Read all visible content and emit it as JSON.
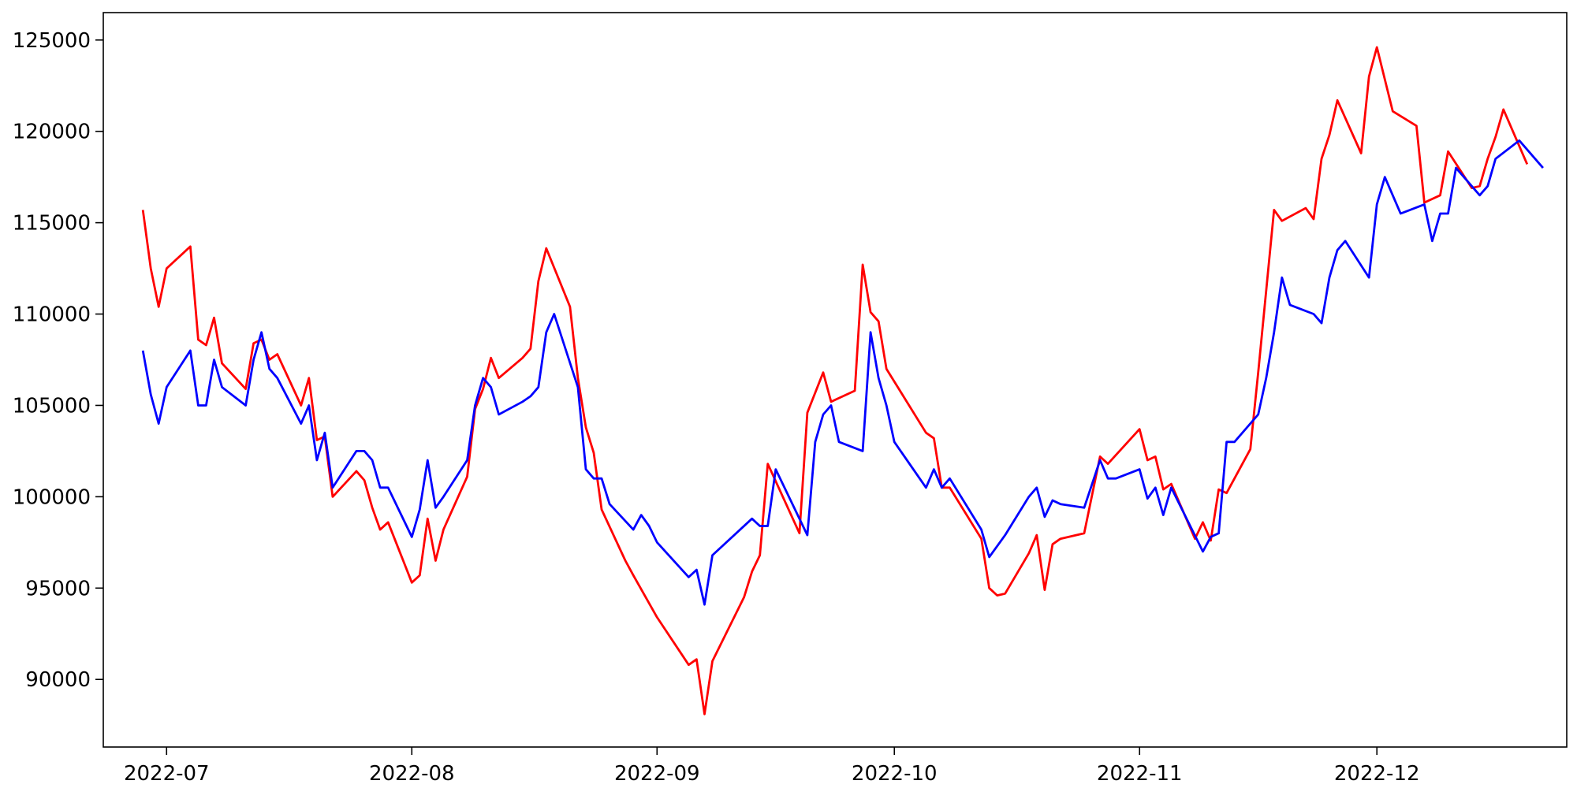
{
  "chart_data": {
    "type": "line",
    "title": "",
    "xlabel": "",
    "ylabel": "",
    "grid": false,
    "legend": "none",
    "xlim": [
      "2022-06-23",
      "2022-12-25"
    ],
    "ylim": [
      86300,
      126500
    ],
    "x_ticks": [
      {
        "date": "2022-07-01",
        "label": "2022-07"
      },
      {
        "date": "2022-08-01",
        "label": "2022-08"
      },
      {
        "date": "2022-09-01",
        "label": "2022-09"
      },
      {
        "date": "2022-10-01",
        "label": "2022-10"
      },
      {
        "date": "2022-11-01",
        "label": "2022-11"
      },
      {
        "date": "2022-12-01",
        "label": "2022-12"
      }
    ],
    "y_ticks": [
      90000,
      95000,
      100000,
      105000,
      110000,
      115000,
      120000,
      125000
    ],
    "series": [
      {
        "color": "#ff0000",
        "points": [
          [
            "2022-06-28",
            115700
          ],
          [
            "2022-06-29",
            112500
          ],
          [
            "2022-06-30",
            110400
          ],
          [
            "2022-07-01",
            112500
          ],
          [
            "2022-07-04",
            113700
          ],
          [
            "2022-07-05",
            108600
          ],
          [
            "2022-07-06",
            108300
          ],
          [
            "2022-07-07",
            109800
          ],
          [
            "2022-07-08",
            107300
          ],
          [
            "2022-07-11",
            105900
          ],
          [
            "2022-07-12",
            108400
          ],
          [
            "2022-07-13",
            108600
          ],
          [
            "2022-07-14",
            107500
          ],
          [
            "2022-07-15",
            107800
          ],
          [
            "2022-07-18",
            105000
          ],
          [
            "2022-07-19",
            106500
          ],
          [
            "2022-07-20",
            103100
          ],
          [
            "2022-07-21",
            103300
          ],
          [
            "2022-07-22",
            100000
          ],
          [
            "2022-07-25",
            101400
          ],
          [
            "2022-07-26",
            100900
          ],
          [
            "2022-07-27",
            99400
          ],
          [
            "2022-07-28",
            98200
          ],
          [
            "2022-07-29",
            98600
          ],
          [
            "2022-08-01",
            95300
          ],
          [
            "2022-08-02",
            95700
          ],
          [
            "2022-08-03",
            98800
          ],
          [
            "2022-08-04",
            96500
          ],
          [
            "2022-08-05",
            98200
          ],
          [
            "2022-08-08",
            101100
          ],
          [
            "2022-08-09",
            104800
          ],
          [
            "2022-08-10",
            105900
          ],
          [
            "2022-08-11",
            107600
          ],
          [
            "2022-08-12",
            106500
          ],
          [
            "2022-08-15",
            107600
          ],
          [
            "2022-08-16",
            108100
          ],
          [
            "2022-08-17",
            111800
          ],
          [
            "2022-08-18",
            113600
          ],
          [
            "2022-08-21",
            110400
          ],
          [
            "2022-08-22",
            106500
          ],
          [
            "2022-08-23",
            103800
          ],
          [
            "2022-08-24",
            102400
          ],
          [
            "2022-08-25",
            99300
          ],
          [
            "2022-08-28",
            96500
          ],
          [
            "2022-08-29",
            95700
          ],
          [
            "2022-09-01",
            93400
          ],
          [
            "2022-09-05",
            90800
          ],
          [
            "2022-09-06",
            91100
          ],
          [
            "2022-09-07",
            88100
          ],
          [
            "2022-09-08",
            91000
          ],
          [
            "2022-09-12",
            94500
          ],
          [
            "2022-09-13",
            95900
          ],
          [
            "2022-09-14",
            96800
          ],
          [
            "2022-09-15",
            101800
          ],
          [
            "2022-09-19",
            98000
          ],
          [
            "2022-09-20",
            104600
          ],
          [
            "2022-09-22",
            106800
          ],
          [
            "2022-09-23",
            105200
          ],
          [
            "2022-09-26",
            105800
          ],
          [
            "2022-09-27",
            112700
          ],
          [
            "2022-09-28",
            110100
          ],
          [
            "2022-09-29",
            109600
          ],
          [
            "2022-09-30",
            107000
          ],
          [
            "2022-10-05",
            103500
          ],
          [
            "2022-10-06",
            103200
          ],
          [
            "2022-10-07",
            100500
          ],
          [
            "2022-10-08",
            100500
          ],
          [
            "2022-10-12",
            97700
          ],
          [
            "2022-10-13",
            95000
          ],
          [
            "2022-10-14",
            94600
          ],
          [
            "2022-10-15",
            94700
          ],
          [
            "2022-10-18",
            96900
          ],
          [
            "2022-10-19",
            97900
          ],
          [
            "2022-10-20",
            94900
          ],
          [
            "2022-10-21",
            97400
          ],
          [
            "2022-10-22",
            97700
          ],
          [
            "2022-10-25",
            98000
          ],
          [
            "2022-10-27",
            102200
          ],
          [
            "2022-10-28",
            101800
          ],
          [
            "2022-11-01",
            103700
          ],
          [
            "2022-11-02",
            102000
          ],
          [
            "2022-11-03",
            102200
          ],
          [
            "2022-11-04",
            100400
          ],
          [
            "2022-11-05",
            100700
          ],
          [
            "2022-11-08",
            97700
          ],
          [
            "2022-11-09",
            98600
          ],
          [
            "2022-11-10",
            97600
          ],
          [
            "2022-11-11",
            100400
          ],
          [
            "2022-11-12",
            100200
          ],
          [
            "2022-11-15",
            102600
          ],
          [
            "2022-11-16",
            106800
          ],
          [
            "2022-11-18",
            115700
          ],
          [
            "2022-11-19",
            115100
          ],
          [
            "2022-11-22",
            115800
          ],
          [
            "2022-11-23",
            115200
          ],
          [
            "2022-11-24",
            118500
          ],
          [
            "2022-11-25",
            119800
          ],
          [
            "2022-11-26",
            121700
          ],
          [
            "2022-11-29",
            118800
          ],
          [
            "2022-11-30",
            123000
          ],
          [
            "2022-12-01",
            124600
          ],
          [
            "2022-12-03",
            121100
          ],
          [
            "2022-12-06",
            120300
          ],
          [
            "2022-12-07",
            116100
          ],
          [
            "2022-12-09",
            116500
          ],
          [
            "2022-12-10",
            118900
          ],
          [
            "2022-12-13",
            116900
          ],
          [
            "2022-12-14",
            117000
          ],
          [
            "2022-12-15",
            118500
          ],
          [
            "2022-12-16",
            119700
          ],
          [
            "2022-12-17",
            121200
          ],
          [
            "2022-12-20",
            118200
          ]
        ]
      },
      {
        "color": "#0000ff",
        "points": [
          [
            "2022-06-28",
            108000
          ],
          [
            "2022-06-29",
            105600
          ],
          [
            "2022-06-30",
            104000
          ],
          [
            "2022-07-01",
            106000
          ],
          [
            "2022-07-04",
            108000
          ],
          [
            "2022-07-05",
            105000
          ],
          [
            "2022-07-06",
            105000
          ],
          [
            "2022-07-07",
            107500
          ],
          [
            "2022-07-08",
            106000
          ],
          [
            "2022-07-11",
            105000
          ],
          [
            "2022-07-12",
            107500
          ],
          [
            "2022-07-13",
            109000
          ],
          [
            "2022-07-14",
            107000
          ],
          [
            "2022-07-15",
            106500
          ],
          [
            "2022-07-18",
            104000
          ],
          [
            "2022-07-19",
            105000
          ],
          [
            "2022-07-20",
            102000
          ],
          [
            "2022-07-21",
            103500
          ],
          [
            "2022-07-22",
            100500
          ],
          [
            "2022-07-25",
            102500
          ],
          [
            "2022-07-26",
            102500
          ],
          [
            "2022-07-27",
            102000
          ],
          [
            "2022-07-28",
            100500
          ],
          [
            "2022-07-29",
            100500
          ],
          [
            "2022-08-01",
            97800
          ],
          [
            "2022-08-02",
            99300
          ],
          [
            "2022-08-03",
            102000
          ],
          [
            "2022-08-04",
            99400
          ],
          [
            "2022-08-05",
            100000
          ],
          [
            "2022-08-08",
            102000
          ],
          [
            "2022-08-09",
            105000
          ],
          [
            "2022-08-10",
            106500
          ],
          [
            "2022-08-11",
            106000
          ],
          [
            "2022-08-12",
            104500
          ],
          [
            "2022-08-15",
            105200
          ],
          [
            "2022-08-16",
            105500
          ],
          [
            "2022-08-17",
            106000
          ],
          [
            "2022-08-18",
            109000
          ],
          [
            "2022-08-19",
            110000
          ],
          [
            "2022-08-22",
            106000
          ],
          [
            "2022-08-23",
            101500
          ],
          [
            "2022-08-24",
            101000
          ],
          [
            "2022-08-25",
            101000
          ],
          [
            "2022-08-26",
            99600
          ],
          [
            "2022-08-29",
            98200
          ],
          [
            "2022-08-30",
            99000
          ],
          [
            "2022-08-31",
            98400
          ],
          [
            "2022-09-01",
            97500
          ],
          [
            "2022-09-05",
            95600
          ],
          [
            "2022-09-06",
            96000
          ],
          [
            "2022-09-07",
            94100
          ],
          [
            "2022-09-08",
            96800
          ],
          [
            "2022-09-13",
            98800
          ],
          [
            "2022-09-14",
            98400
          ],
          [
            "2022-09-15",
            98400
          ],
          [
            "2022-09-16",
            101500
          ],
          [
            "2022-09-20",
            97900
          ],
          [
            "2022-09-21",
            103000
          ],
          [
            "2022-09-22",
            104500
          ],
          [
            "2022-09-23",
            105000
          ],
          [
            "2022-09-24",
            103000
          ],
          [
            "2022-09-27",
            102500
          ],
          [
            "2022-09-28",
            109000
          ],
          [
            "2022-09-29",
            106500
          ],
          [
            "2022-09-30",
            105000
          ],
          [
            "2022-10-01",
            103000
          ],
          [
            "2022-10-05",
            100500
          ],
          [
            "2022-10-06",
            101500
          ],
          [
            "2022-10-07",
            100500
          ],
          [
            "2022-10-08",
            101000
          ],
          [
            "2022-10-12",
            98200
          ],
          [
            "2022-10-13",
            96700
          ],
          [
            "2022-10-15",
            97900
          ],
          [
            "2022-10-18",
            100000
          ],
          [
            "2022-10-19",
            100500
          ],
          [
            "2022-10-20",
            98900
          ],
          [
            "2022-10-21",
            99800
          ],
          [
            "2022-10-22",
            99600
          ],
          [
            "2022-10-25",
            99400
          ],
          [
            "2022-10-27",
            102000
          ],
          [
            "2022-10-28",
            101000
          ],
          [
            "2022-10-29",
            101000
          ],
          [
            "2022-11-01",
            101500
          ],
          [
            "2022-11-02",
            99900
          ],
          [
            "2022-11-03",
            100500
          ],
          [
            "2022-11-04",
            99000
          ],
          [
            "2022-11-05",
            100500
          ],
          [
            "2022-11-09",
            97000
          ],
          [
            "2022-11-10",
            97800
          ],
          [
            "2022-11-11",
            98000
          ],
          [
            "2022-11-12",
            103000
          ],
          [
            "2022-11-13",
            103000
          ],
          [
            "2022-11-16",
            104500
          ],
          [
            "2022-11-17",
            106500
          ],
          [
            "2022-11-18",
            109000
          ],
          [
            "2022-11-19",
            112000
          ],
          [
            "2022-11-20",
            110500
          ],
          [
            "2022-11-23",
            110000
          ],
          [
            "2022-11-24",
            109500
          ],
          [
            "2022-11-25",
            112000
          ],
          [
            "2022-11-26",
            113500
          ],
          [
            "2022-11-27",
            114000
          ],
          [
            "2022-11-30",
            112000
          ],
          [
            "2022-12-01",
            116000
          ],
          [
            "2022-12-02",
            117500
          ],
          [
            "2022-12-04",
            115500
          ],
          [
            "2022-12-07",
            116000
          ],
          [
            "2022-12-08",
            114000
          ],
          [
            "2022-12-09",
            115500
          ],
          [
            "2022-12-10",
            115500
          ],
          [
            "2022-12-11",
            118000
          ],
          [
            "2022-12-14",
            116500
          ],
          [
            "2022-12-15",
            117000
          ],
          [
            "2022-12-16",
            118500
          ],
          [
            "2022-12-19",
            119500
          ],
          [
            "2022-12-22",
            118000
          ]
        ]
      }
    ]
  }
}
